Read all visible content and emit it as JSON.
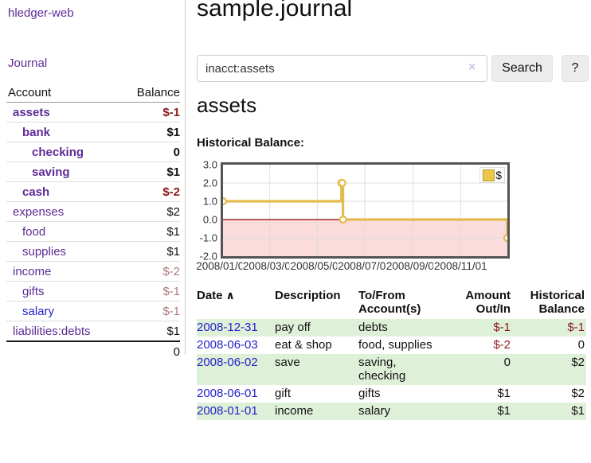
{
  "app": {
    "brand": "hledger-web",
    "nav_journal": "Journal"
  },
  "sidebar": {
    "header": {
      "account": "Account",
      "balance": "Balance"
    },
    "accounts": [
      {
        "name": "assets",
        "balance": "$-1"
      },
      {
        "name": "bank",
        "balance": "$1"
      },
      {
        "name": "checking",
        "balance": "0"
      },
      {
        "name": "saving",
        "balance": "$1"
      },
      {
        "name": "cash",
        "balance": "$-2"
      },
      {
        "name": "expenses",
        "balance": "$2"
      },
      {
        "name": "food",
        "balance": "$1"
      },
      {
        "name": "supplies",
        "balance": "$1"
      },
      {
        "name": "income",
        "balance": "$-2"
      },
      {
        "name": "gifts",
        "balance": "$-1"
      },
      {
        "name": "salary",
        "balance": "$-1"
      },
      {
        "name": "liabilities:debts",
        "balance": "$1"
      }
    ],
    "total": "0"
  },
  "header": {
    "title": "sample.journal"
  },
  "search": {
    "value": "inacct:assets",
    "clear_icon": "×",
    "button": "Search",
    "help_button": "?"
  },
  "account_page": {
    "title": "assets",
    "section_label": "Historical Balance:"
  },
  "chart_data": {
    "type": "line",
    "step": true,
    "title": "Historical Balance:",
    "series": [
      {
        "name": "$",
        "points": [
          {
            "x": "2008-01-01",
            "y": 1
          },
          {
            "x": "2008-06-01",
            "y": 2
          },
          {
            "x": "2008-06-02",
            "y": 2
          },
          {
            "x": "2008-06-03",
            "y": 0
          },
          {
            "x": "2008-12-31",
            "y": -1
          }
        ]
      }
    ],
    "xlim": [
      "2008-01-01",
      "2008-12-31"
    ],
    "ylim": [
      -2,
      3
    ],
    "y_ticks": [
      3,
      2,
      1,
      0,
      -1,
      -2
    ],
    "x_ticks": [
      {
        "date": "2008-01-01",
        "label": "2008/01/01"
      },
      {
        "date": "2008-03-01",
        "label": "2008/03/01"
      },
      {
        "date": "2008-05-01",
        "label": "2008/05/01"
      },
      {
        "date": "2008-07-01",
        "label": "2008/07/01"
      },
      {
        "date": "2008-09-01",
        "label": "2008/09/01"
      },
      {
        "date": "2008-11-01",
        "label": "2008/11/01"
      }
    ],
    "legend": {
      "position": "top-right",
      "label": "$"
    },
    "grid": true,
    "colors": {
      "line": "#e3bb4e",
      "marker_fill": "#ffffff",
      "negative_region": "#fbdcdc",
      "zero_line": "#8b0000",
      "grid": "#dddddd",
      "border": "#545454"
    }
  },
  "register": {
    "sort_icon": "∧",
    "columns": [
      {
        "label": "Date"
      },
      {
        "label": "Description"
      },
      {
        "label": "To/From\nAccount(s)"
      },
      {
        "label": "Amount\nOut/In"
      },
      {
        "label": "Historical\nBalance"
      }
    ],
    "rows": [
      {
        "date": "2008-12-31",
        "description": "pay off",
        "accounts": "debts",
        "amount": "$-1",
        "balance": "$-1"
      },
      {
        "date": "2008-06-03",
        "description": "eat & shop",
        "accounts": "food, supplies",
        "amount": "$-2",
        "balance": "0"
      },
      {
        "date": "2008-06-02",
        "description": "save",
        "accounts": "saving,\nchecking",
        "amount": "0",
        "balance": "$2"
      },
      {
        "date": "2008-06-01",
        "description": "gift",
        "accounts": "gifts",
        "amount": "$1",
        "balance": "$2"
      },
      {
        "date": "2008-01-01",
        "description": "income",
        "accounts": "salary",
        "amount": "$1",
        "balance": "$1"
      }
    ]
  }
}
